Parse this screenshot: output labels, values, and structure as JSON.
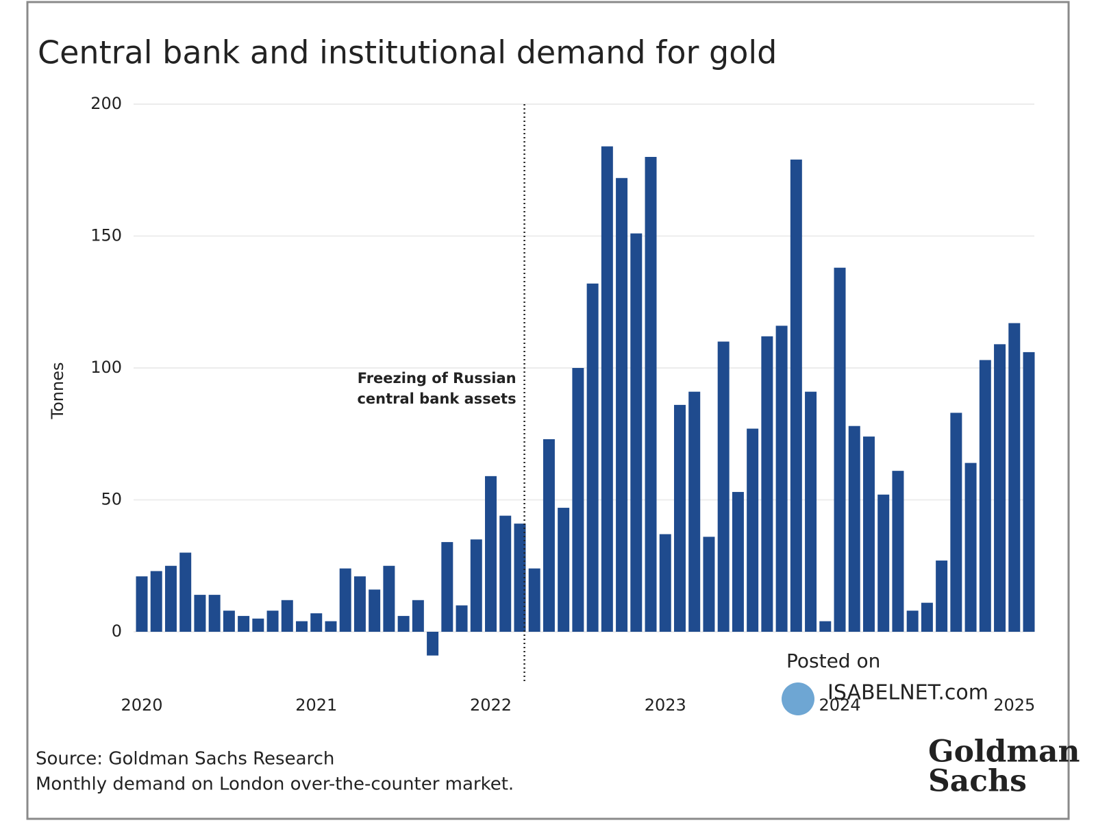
{
  "chart_data": {
    "type": "bar",
    "title": "Central bank and institutional demand for gold",
    "y_label": "Tonnes",
    "categories": [
      "2020",
      null,
      null,
      null,
      null,
      null,
      null,
      null,
      null,
      null,
      null,
      null,
      "2021",
      null,
      null,
      null,
      null,
      null,
      null,
      null,
      null,
      null,
      null,
      null,
      "2022",
      null,
      null,
      null,
      null,
      null,
      null,
      null,
      null,
      null,
      null,
      null,
      "2023",
      null,
      null,
      null,
      null,
      null,
      null,
      null,
      null,
      null,
      null,
      null,
      "2024",
      null,
      null,
      null,
      null,
      null,
      null,
      null,
      null,
      null,
      null,
      null,
      "2025",
      null
    ],
    "values": [
      21,
      23,
      25,
      30,
      14,
      14,
      8,
      6,
      5,
      8,
      12,
      4,
      7,
      4,
      24,
      21,
      16,
      25,
      6,
      12,
      -9,
      34,
      10,
      35,
      59,
      44,
      41,
      24,
      73,
      47,
      100,
      132,
      184,
      172,
      151,
      180,
      37,
      86,
      91,
      36,
      110,
      53,
      77,
      112,
      116,
      179,
      91,
      4,
      138,
      78,
      74,
      52,
      61,
      8,
      11,
      27,
      83,
      64,
      103,
      109,
      117,
      106
    ],
    "color": "#1f4b8e",
    "ylim": [
      -20,
      200
    ],
    "yticks": [
      0,
      50,
      100,
      150,
      200
    ],
    "grid": true,
    "annotation": [
      "Freezing of Russian",
      "central bank assets"
    ],
    "source": [
      "Source: Goldman Sachs Research",
      "Monthly demand on London over-the-counter market."
    ],
    "logo": [
      "Goldman",
      "Sachs"
    ],
    "watermark": [
      "Posted on",
      "ISABELNET.com"
    ]
  }
}
